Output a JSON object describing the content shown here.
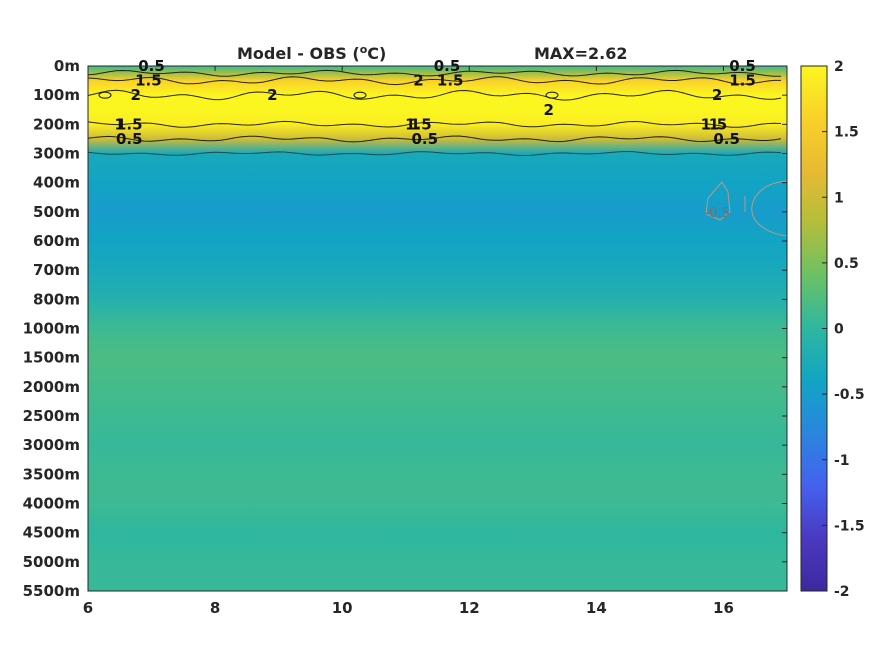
{
  "chart_data": {
    "type": "heatmap",
    "title": "Model - OBS (ºC)",
    "title_parts": {
      "prefix": "Model - OBS (",
      "superscript": "o",
      "suffix": "C)"
    },
    "max_label": "MAX=2.62",
    "x_ticks": [
      "6",
      "8",
      "10",
      "12",
      "14",
      "16"
    ],
    "x_tick_values": [
      6,
      8,
      10,
      12,
      14,
      16
    ],
    "xlim": [
      6,
      17
    ],
    "y_ticks": [
      "0m",
      "100m",
      "200m",
      "300m",
      "400m",
      "500m",
      "600m",
      "700m",
      "800m",
      "1000m",
      "1500m",
      "2000m",
      "2500m",
      "3000m",
      "3500m",
      "4000m",
      "4500m",
      "5000m",
      "5500m"
    ],
    "colorbar": {
      "ticks": [
        "2",
        "1.5",
        "1",
        "0.5",
        "0",
        "-0.5",
        "-1",
        "-1.5",
        "-2"
      ],
      "range": [
        -2,
        2
      ],
      "colormap": "parula",
      "stops": [
        "#fbf620",
        "#f9d12a",
        "#e7ba32",
        "#b3be3c",
        "#6ac165",
        "#2eb7a0",
        "#12a4c4",
        "#2a85df",
        "#4561ee",
        "#4a39c0",
        "#3c29a0"
      ]
    },
    "depth_profile": [
      {
        "depth": "0m",
        "value": 0.1
      },
      {
        "depth": "25m",
        "value": 0.7
      },
      {
        "depth": "50m",
        "value": 1.6
      },
      {
        "depth": "100m",
        "value": 2.2
      },
      {
        "depth": "150m",
        "value": 2.2
      },
      {
        "depth": "200m",
        "value": 1.9
      },
      {
        "depth": "250m",
        "value": 1.0
      },
      {
        "depth": "300m",
        "value": -0.3
      },
      {
        "depth": "400m",
        "value": -0.4
      },
      {
        "depth": "500m",
        "value": -0.5
      },
      {
        "depth": "600m",
        "value": -0.4
      },
      {
        "depth": "700m",
        "value": -0.3
      },
      {
        "depth": "800m",
        "value": -0.15
      },
      {
        "depth": "1000m",
        "value": 0.1
      },
      {
        "depth": "1500m",
        "value": 0.2
      },
      {
        "depth": "2000m",
        "value": 0.15
      },
      {
        "depth": "2500m",
        "value": 0.1
      },
      {
        "depth": "3000m",
        "value": 0.05
      },
      {
        "depth": "3500m",
        "value": 0.1
      },
      {
        "depth": "4000m",
        "value": 0.1
      },
      {
        "depth": "4500m",
        "value": 0.0
      },
      {
        "depth": "5000m",
        "value": 0.05
      },
      {
        "depth": "5500m",
        "value": 0.05
      }
    ],
    "contour_labels": [
      {
        "text": "0.5",
        "x": 7.0,
        "depth": "0m"
      },
      {
        "text": "1.5",
        "x": 6.95,
        "depth": "50m"
      },
      {
        "text": "2",
        "x": 6.75,
        "depth": "100m"
      },
      {
        "text": "2",
        "x": 8.9,
        "depth": "100m"
      },
      {
        "text": "1.5",
        "x": 6.65,
        "depth": "200m"
      },
      {
        "text": "1",
        "x": 6.5,
        "depth": "200m"
      },
      {
        "text": "0.5",
        "x": 6.65,
        "depth": "250m"
      },
      {
        "text": "0.5",
        "x": 11.65,
        "depth": "0m"
      },
      {
        "text": "1.5",
        "x": 11.7,
        "depth": "50m"
      },
      {
        "text": "2",
        "x": 11.2,
        "depth": "50m"
      },
      {
        "text": "1.5",
        "x": 11.2,
        "depth": "200m"
      },
      {
        "text": "1",
        "x": 11.15,
        "depth": "200m"
      },
      {
        "text": "0.5",
        "x": 11.3,
        "depth": "250m"
      },
      {
        "text": "2",
        "x": 13.25,
        "depth": "150m"
      },
      {
        "text": "0.5",
        "x": 16.3,
        "depth": "0m"
      },
      {
        "text": "1.5",
        "x": 16.3,
        "depth": "50m"
      },
      {
        "text": "2",
        "x": 15.9,
        "depth": "100m"
      },
      {
        "text": "1.5",
        "x": 15.85,
        "depth": "200m"
      },
      {
        "text": "1",
        "x": 15.85,
        "depth": "200m"
      },
      {
        "text": "0.5",
        "x": 16.05,
        "depth": "250m"
      },
      {
        "text": "-0.5",
        "x": 15.9,
        "depth": "500m"
      }
    ],
    "grid": false,
    "legend": "colorbar-right"
  }
}
